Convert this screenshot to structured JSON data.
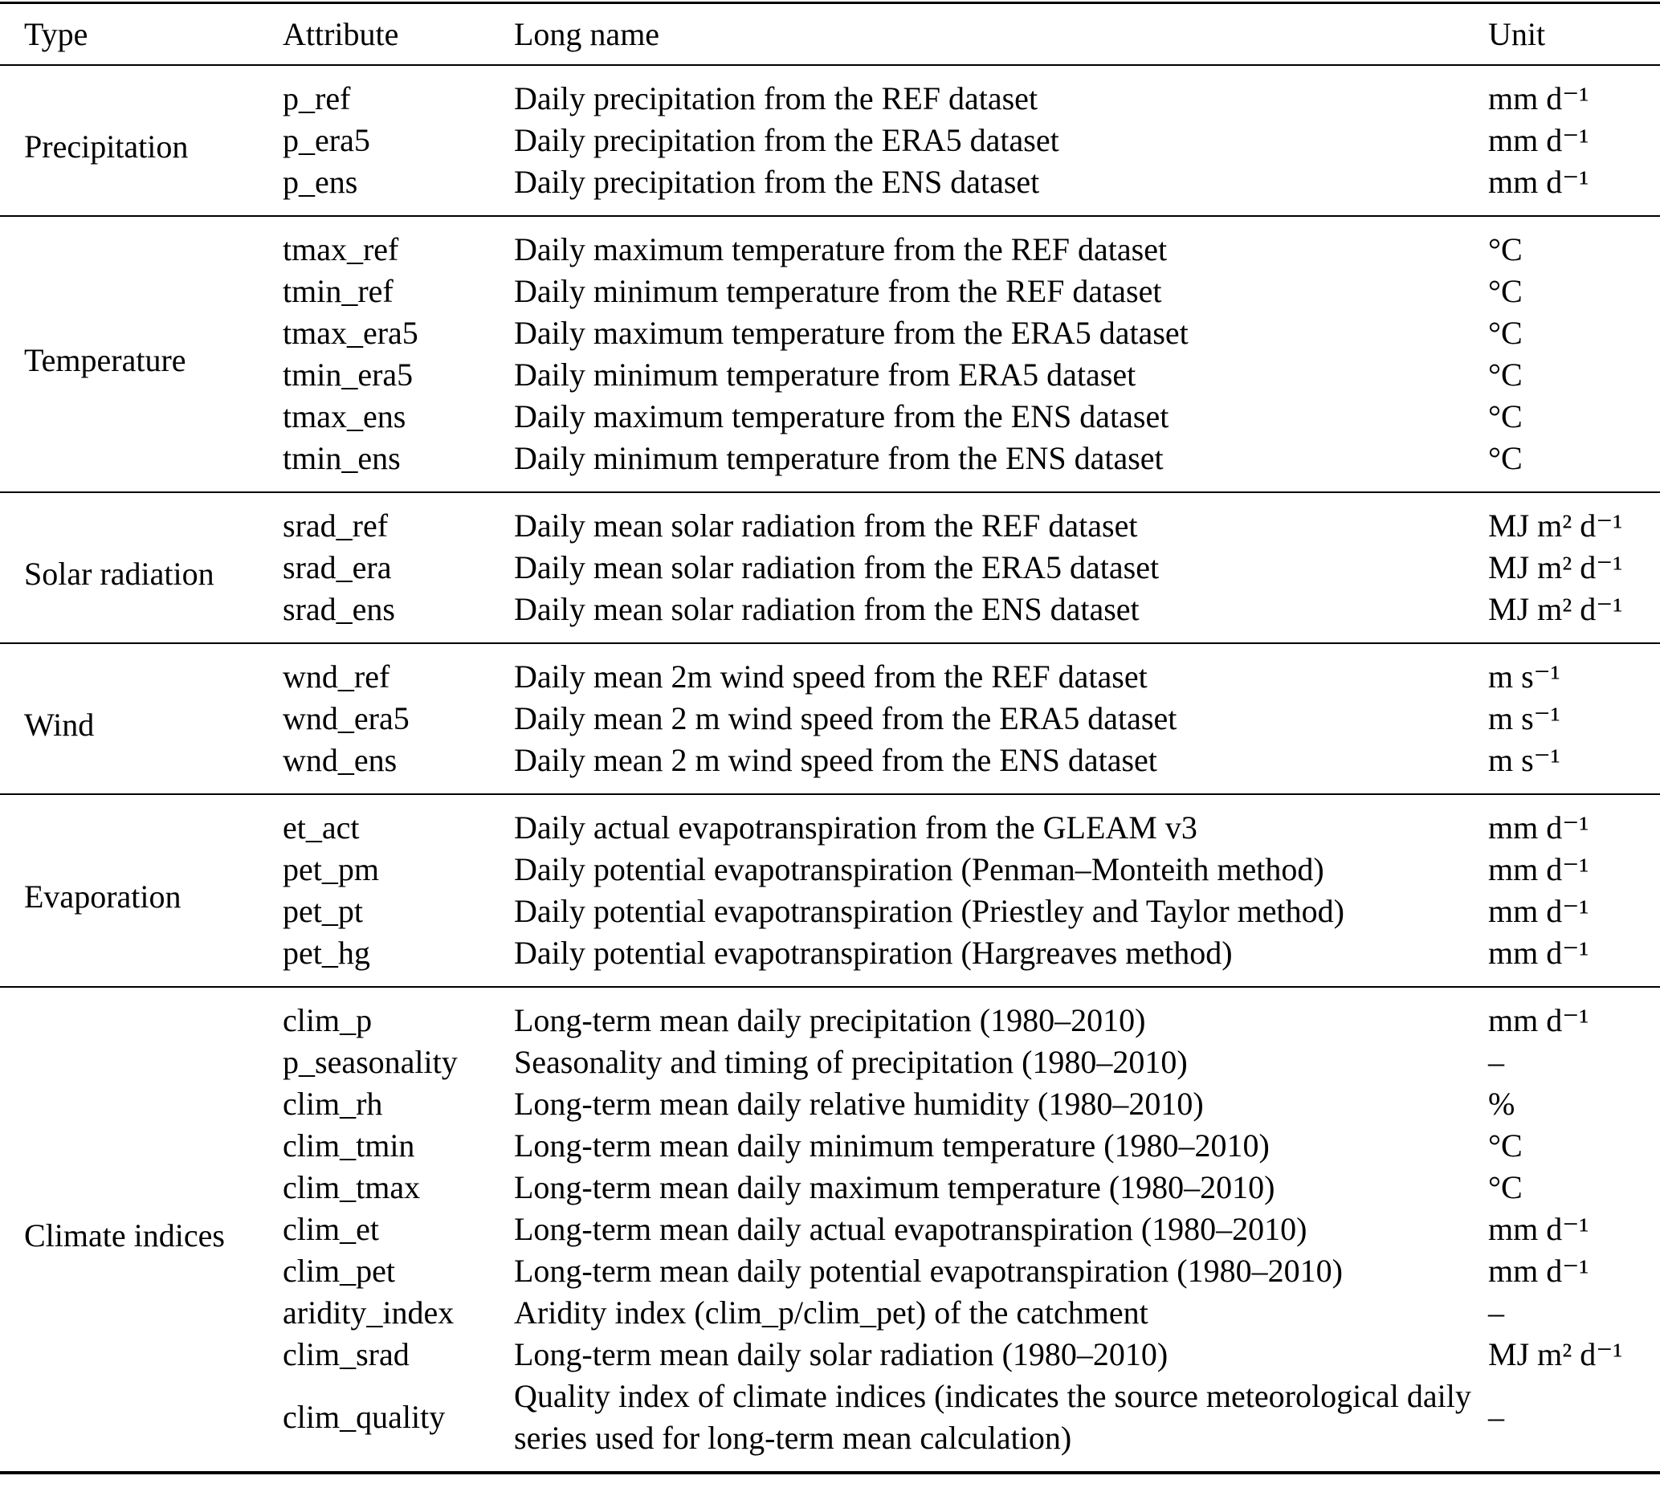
{
  "table": {
    "headers": {
      "type": "Type",
      "attribute": "Attribute",
      "long_name": "Long name",
      "unit": "Unit"
    },
    "sections": [
      {
        "type": "Precipitation",
        "rows": [
          {
            "attribute": "p_ref",
            "long_name": "Daily precipitation from the REF dataset",
            "unit": "mm d⁻¹"
          },
          {
            "attribute": "p_era5",
            "long_name": "Daily precipitation from the ERA5 dataset",
            "unit": "mm d⁻¹"
          },
          {
            "attribute": "p_ens",
            "long_name": "Daily precipitation from the ENS dataset",
            "unit": "mm d⁻¹"
          }
        ]
      },
      {
        "type": "Temperature",
        "rows": [
          {
            "attribute": "tmax_ref",
            "long_name": "Daily maximum temperature from the REF dataset",
            "unit": "°C"
          },
          {
            "attribute": "tmin_ref",
            "long_name": "Daily minimum temperature from the REF dataset",
            "unit": "°C"
          },
          {
            "attribute": "tmax_era5",
            "long_name": "Daily maximum temperature from the ERA5 dataset",
            "unit": "°C"
          },
          {
            "attribute": "tmin_era5",
            "long_name": "Daily minimum temperature from ERA5 dataset",
            "unit": "°C"
          },
          {
            "attribute": "tmax_ens",
            "long_name": "Daily maximum temperature from the ENS dataset",
            "unit": "°C"
          },
          {
            "attribute": "tmin_ens",
            "long_name": "Daily minimum temperature from the ENS dataset",
            "unit": "°C"
          }
        ]
      },
      {
        "type": "Solar radiation",
        "rows": [
          {
            "attribute": "srad_ref",
            "long_name": "Daily mean solar radiation from the REF dataset",
            "unit": "MJ m² d⁻¹"
          },
          {
            "attribute": "srad_era",
            "long_name": "Daily mean solar radiation from the ERA5 dataset",
            "unit": "MJ m² d⁻¹"
          },
          {
            "attribute": "srad_ens",
            "long_name": "Daily mean solar radiation from the ENS dataset",
            "unit": "MJ m² d⁻¹"
          }
        ]
      },
      {
        "type": "Wind",
        "rows": [
          {
            "attribute": "wnd_ref",
            "long_name": "Daily mean 2m wind speed from the REF dataset",
            "unit": "m s⁻¹"
          },
          {
            "attribute": "wnd_era5",
            "long_name": "Daily mean 2 m wind speed from the ERA5 dataset",
            "unit": "m s⁻¹"
          },
          {
            "attribute": "wnd_ens",
            "long_name": "Daily mean 2 m wind speed from the ENS dataset",
            "unit": "m s⁻¹"
          }
        ]
      },
      {
        "type": "Evaporation",
        "rows": [
          {
            "attribute": "et_act",
            "long_name": "Daily actual evapotranspiration from the GLEAM v3",
            "unit": "mm d⁻¹"
          },
          {
            "attribute": "pet_pm",
            "long_name": "Daily potential evapotranspiration (Penman–Monteith method)",
            "unit": "mm d⁻¹"
          },
          {
            "attribute": "pet_pt",
            "long_name": "Daily potential evapotranspiration (Priestley and Taylor method)",
            "unit": "mm d⁻¹"
          },
          {
            "attribute": "pet_hg",
            "long_name": "Daily potential evapotranspiration (Hargreaves method)",
            "unit": "mm d⁻¹"
          }
        ]
      },
      {
        "type": "Climate indices",
        "rows": [
          {
            "attribute": "clim_p",
            "long_name": "Long-term mean daily precipitation (1980–2010)",
            "unit": "mm d⁻¹"
          },
          {
            "attribute": "p_seasonality",
            "long_name": "Seasonality and timing of precipitation (1980–2010)",
            "unit": "–"
          },
          {
            "attribute": "clim_rh",
            "long_name": "Long-term mean daily relative humidity (1980–2010)",
            "unit": "%"
          },
          {
            "attribute": "clim_tmin",
            "long_name": "Long-term mean daily minimum temperature (1980–2010)",
            "unit": "°C"
          },
          {
            "attribute": "clim_tmax",
            "long_name": "Long-term mean daily maximum temperature (1980–2010)",
            "unit": "°C"
          },
          {
            "attribute": "clim_et",
            "long_name": "Long-term mean daily actual evapotranspiration (1980–2010)",
            "unit": "mm d⁻¹"
          },
          {
            "attribute": "clim_pet",
            "long_name": "Long-term mean daily potential evapotranspiration (1980–2010)",
            "unit": "mm d⁻¹"
          },
          {
            "attribute": "aridity_index",
            "long_name": "Aridity index (clim_p/clim_pet) of the catchment",
            "unit": "–"
          },
          {
            "attribute": "clim_srad",
            "long_name": "Long-term mean daily solar radiation (1980–2010)",
            "unit": "MJ m² d⁻¹"
          },
          {
            "attribute": "clim_quality",
            "long_name": "Quality index of climate indices (indicates the source meteorological daily series used for long-term mean calculation)",
            "unit": "–"
          }
        ]
      }
    ]
  }
}
